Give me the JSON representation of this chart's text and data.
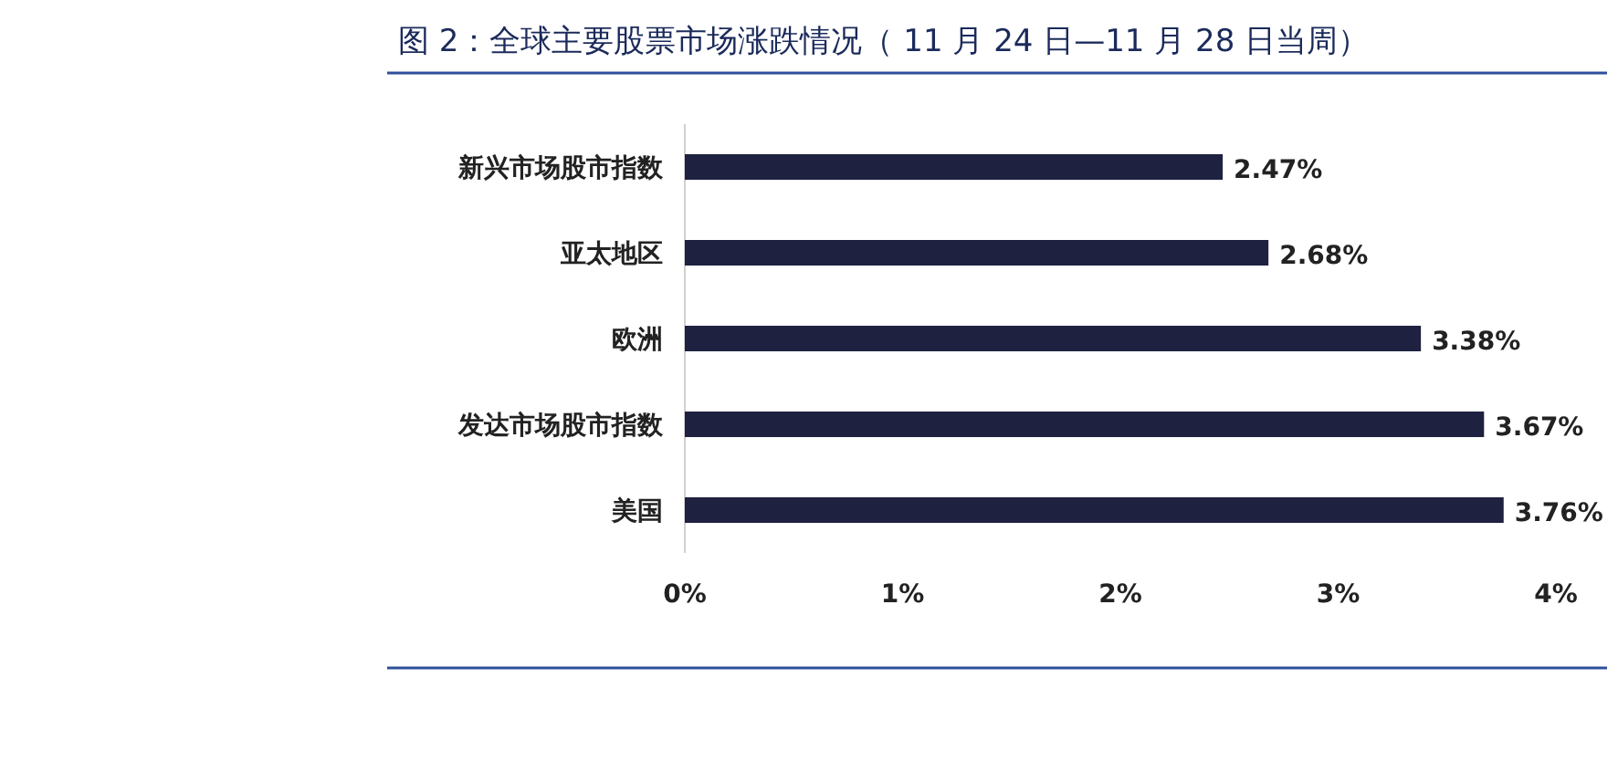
{
  "chart_data": {
    "type": "bar",
    "orientation": "horizontal",
    "title": "图 2：全球主要股票市场涨跌情况（ 11 月 24 日—11 月 28 日当周）",
    "categories": [
      "新兴市场股市指数",
      "亚太地区",
      "欧洲",
      "发达市场股市指数",
      "美国"
    ],
    "values": [
      2.47,
      2.68,
      3.38,
      3.67,
      3.76
    ],
    "value_labels": [
      "2.47%",
      "2.68%",
      "3.38%",
      "3.67%",
      "3.76%"
    ],
    "color": "#1f2140",
    "xlim": [
      0,
      4
    ],
    "xticks": [
      {
        "value": 0,
        "label": "0%"
      },
      {
        "value": 1,
        "label": "1%"
      },
      {
        "value": 2,
        "label": "2%"
      },
      {
        "value": 3,
        "label": "3%"
      },
      {
        "value": 4,
        "label": "4%"
      }
    ]
  }
}
